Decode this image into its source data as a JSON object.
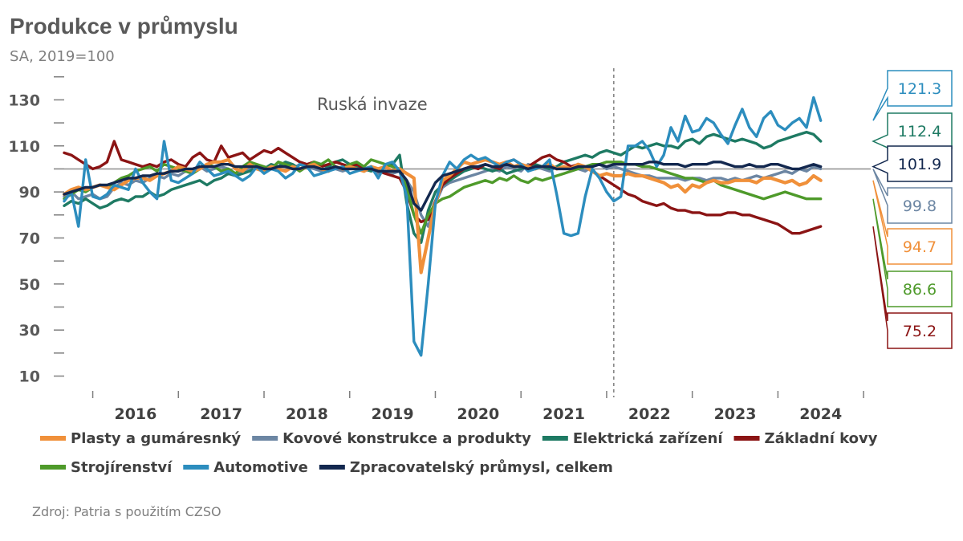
{
  "chart_data": {
    "type": "line",
    "title": "Produkce v průmyslu",
    "subtitle": "SA, 2019=100",
    "source": "Zdroj: Patria s použitím CZSO",
    "annotation": "Ruská invaze",
    "reference_line": 100,
    "annotation_date": "2022-02",
    "y_ticks": [
      10,
      30,
      50,
      70,
      90,
      110,
      130
    ],
    "ylim": [
      6,
      142
    ],
    "xlim": [
      "2015-09",
      "2025-02"
    ],
    "x_ticks": [
      "2016",
      "2017",
      "2018",
      "2019",
      "2020",
      "2021",
      "2022",
      "2023",
      "2024"
    ],
    "x_start": "2015-09",
    "grid": false,
    "legend_position": "bottom",
    "series": [
      {
        "name": "Plasty a gumáresnký",
        "color": "#F0903A",
        "last_label": "94.7",
        "values": [
          89,
          91,
          92,
          91,
          92,
          93,
          92,
          91,
          93,
          95,
          96,
          96,
          95,
          97,
          98,
          99,
          101,
          100,
          99,
          100,
          102,
          103,
          103,
          104,
          100,
          99,
          102,
          100,
          99,
          101,
          100,
          99,
          101,
          100,
          101,
          102,
          100,
          99,
          101,
          100,
          101,
          100,
          99,
          101,
          100,
          101,
          99,
          100,
          98,
          96,
          55,
          70,
          85,
          95,
          97,
          100,
          103,
          102,
          103,
          104,
          103,
          102,
          103,
          101,
          102,
          101,
          100,
          101,
          102,
          100,
          101,
          100,
          102,
          101,
          99,
          97,
          98,
          97,
          97,
          98,
          97,
          97,
          96,
          95,
          94,
          92,
          93,
          90,
          93,
          92,
          94,
          95,
          94,
          94,
          95,
          95,
          95,
          94,
          96,
          96,
          95,
          94,
          95,
          93,
          94,
          97,
          95
        ]
      },
      {
        "name": "Kovové konstrukce a produkty",
        "color": "#6C86A3",
        "last_label": "99.8",
        "values": [
          88,
          90,
          87,
          88,
          89,
          87,
          88,
          92,
          94,
          93,
          95,
          94,
          96,
          97,
          96,
          98,
          97,
          99,
          98,
          101,
          99,
          100,
          101,
          100,
          98,
          99,
          100,
          101,
          99,
          100,
          103,
          101,
          100,
          102,
          101,
          100,
          99,
          101,
          100,
          99,
          100,
          101,
          99,
          100,
          98,
          99,
          98,
          99,
          95,
          90,
          80,
          75,
          85,
          92,
          94,
          95,
          96,
          97,
          98,
          99,
          100,
          99,
          101,
          100,
          99,
          102,
          101,
          100,
          99,
          101,
          100,
          101,
          100,
          99,
          101,
          102,
          100,
          101,
          100,
          99,
          98,
          97,
          97,
          96,
          96,
          96,
          96,
          95,
          96,
          96,
          95,
          96,
          96,
          95,
          96,
          95,
          96,
          97,
          96,
          97,
          98,
          99,
          98,
          100,
          99,
          101,
          100
        ]
      },
      {
        "name": "Elektrická zařízení",
        "color": "#1E7A63",
        "last_label": "112.4",
        "values": [
          84,
          86,
          85,
          87,
          85,
          83,
          84,
          86,
          87,
          86,
          88,
          88,
          90,
          88,
          89,
          91,
          92,
          93,
          94,
          95,
          93,
          95,
          96,
          98,
          97,
          98,
          99,
          101,
          100,
          102,
          101,
          103,
          102,
          100,
          101,
          103,
          102,
          101,
          103,
          104,
          102,
          101,
          100,
          99,
          100,
          101,
          102,
          106,
          85,
          72,
          68,
          82,
          90,
          93,
          95,
          97,
          99,
          100,
          101,
          100,
          99,
          100,
          98,
          99,
          100,
          101,
          102,
          101,
          100,
          101,
          103,
          104,
          105,
          106,
          105,
          107,
          108,
          107,
          106,
          108,
          110,
          109,
          110,
          111,
          110,
          110,
          109,
          112,
          113,
          111,
          114,
          115,
          114,
          113,
          112,
          113,
          112,
          111,
          109,
          110,
          112,
          113,
          114,
          115,
          116,
          115,
          112
        ]
      },
      {
        "name": "Základní kovy",
        "color": "#8B1414",
        "last_label": "75.2",
        "values": [
          107,
          106,
          104,
          102,
          100,
          101,
          103,
          112,
          104,
          103,
          102,
          101,
          102,
          101,
          103,
          104,
          102,
          101,
          105,
          107,
          104,
          103,
          110,
          105,
          106,
          107,
          104,
          106,
          108,
          107,
          109,
          107,
          105,
          103,
          102,
          103,
          101,
          102,
          103,
          102,
          101,
          102,
          100,
          101,
          99,
          98,
          97,
          96,
          90,
          80,
          77,
          78,
          86,
          93,
          96,
          98,
          100,
          101,
          100,
          102,
          101,
          100,
          103,
          104,
          102,
          101,
          103,
          105,
          106,
          104,
          103,
          101,
          102,
          101,
          99,
          97,
          95,
          93,
          91,
          89,
          88,
          86,
          85,
          84,
          85,
          83,
          82,
          82,
          81,
          81,
          80,
          80,
          80,
          81,
          81,
          80,
          80,
          79,
          78,
          77,
          76,
          74,
          72,
          72,
          73,
          74,
          75
        ]
      },
      {
        "name": "Strojírenství",
        "color": "#4E9A2A",
        "last_label": "86.6",
        "values": [
          87,
          89,
          91,
          90,
          92,
          93,
          92,
          94,
          96,
          97,
          99,
          100,
          101,
          99,
          102,
          101,
          100,
          99,
          98,
          100,
          102,
          101,
          99,
          100,
          98,
          101,
          103,
          102,
          101,
          100,
          103,
          102,
          101,
          99,
          101,
          103,
          102,
          104,
          101,
          100,
          102,
          103,
          101,
          104,
          103,
          102,
          101,
          100,
          92,
          80,
          72,
          80,
          85,
          87,
          88,
          90,
          92,
          93,
          94,
          95,
          94,
          96,
          95,
          97,
          95,
          94,
          96,
          95,
          96,
          97,
          98,
          99,
          100,
          101,
          102,
          102,
          103,
          103,
          103,
          102,
          102,
          101,
          101,
          100,
          99,
          98,
          97,
          96,
          96,
          95,
          94,
          95,
          93,
          92,
          91,
          90,
          89,
          88,
          87,
          88,
          89,
          90,
          89,
          88,
          87,
          87,
          87
        ]
      },
      {
        "name": "Automotive",
        "color": "#2C8DBE",
        "last_label": "121.3",
        "values": [
          86,
          90,
          75,
          104,
          88,
          87,
          89,
          93,
          92,
          91,
          100,
          94,
          90,
          87,
          112,
          95,
          94,
          96,
          98,
          103,
          100,
          97,
          98,
          99,
          97,
          95,
          97,
          101,
          98,
          100,
          99,
          96,
          98,
          102,
          101,
          97,
          98,
          99,
          100,
          101,
          98,
          99,
          100,
          101,
          96,
          102,
          103,
          99,
          88,
          25,
          19,
          50,
          85,
          97,
          103,
          100,
          104,
          106,
          104,
          105,
          103,
          101,
          103,
          104,
          102,
          99,
          100,
          101,
          104,
          89,
          72,
          71,
          72,
          88,
          100,
          96,
          90,
          86,
          88,
          110,
          110,
          112,
          108,
          101,
          106,
          118,
          112,
          123,
          116,
          117,
          122,
          120,
          115,
          111,
          119,
          126,
          118,
          114,
          122,
          125,
          119,
          117,
          120,
          122,
          118,
          131,
          121
        ]
      },
      {
        "name": "Zpracovatelský průmysl, celkem",
        "color": "#13284F",
        "last_label": "101.9",
        "values": [
          89,
          90,
          91,
          92,
          92,
          93,
          93,
          94,
          95,
          96,
          96,
          97,
          97,
          98,
          98,
          99,
          99,
          100,
          100,
          101,
          101,
          101,
          102,
          102,
          101,
          101,
          101,
          101,
          100,
          100,
          101,
          101,
          100,
          100,
          101,
          101,
          100,
          100,
          101,
          100,
          100,
          100,
          100,
          100,
          99,
          99,
          99,
          99,
          95,
          85,
          82,
          88,
          94,
          97,
          98,
          99,
          100,
          101,
          101,
          102,
          101,
          101,
          102,
          101,
          101,
          100,
          101,
          101,
          101,
          100,
          100,
          100,
          101,
          101,
          101,
          102,
          101,
          102,
          102,
          102,
          102,
          102,
          103,
          103,
          102,
          102,
          102,
          101,
          102,
          102,
          102,
          103,
          103,
          102,
          101,
          101,
          102,
          101,
          101,
          102,
          102,
          101,
          100,
          100,
          101,
          102,
          101
        ]
      }
    ]
  },
  "legend": {
    "row1": [
      "Plasty a gumáresnký",
      "Kovové konstrukce a produkty",
      "Elektrická zařízení",
      "Základní kovy"
    ],
    "row2": [
      "Strojírenství",
      "Automotive",
      "Zpracovatelský průmysl, celkem"
    ]
  },
  "colors": {
    "text": "#595959",
    "axis": "#7f7f7f",
    "reference": "#8c8c8c"
  }
}
